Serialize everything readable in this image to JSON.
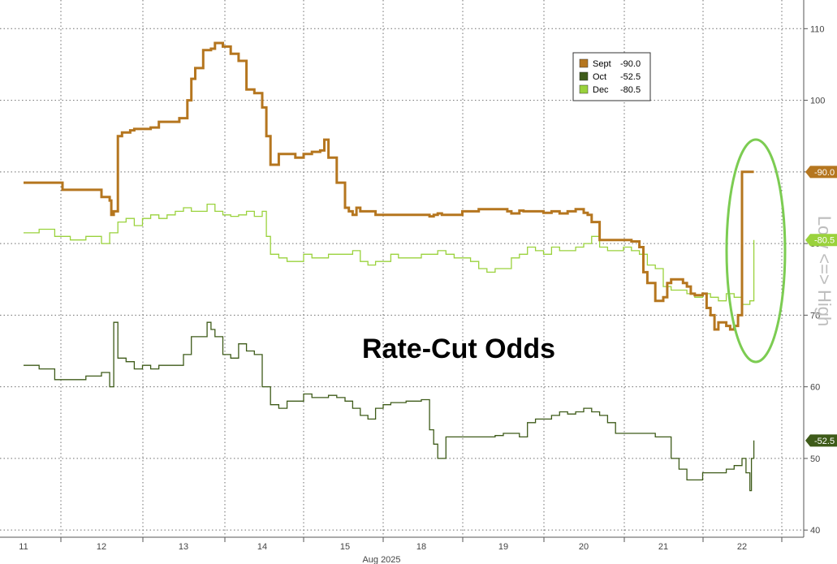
{
  "chart_data": {
    "type": "line",
    "title": "",
    "annotation": "Rate-Cut Odds",
    "side_label": "Low <=> High",
    "xlabel": "Aug 2025",
    "x_ticks": [
      "11",
      "12",
      "13",
      "14",
      "15",
      "18",
      "19",
      "20",
      "21",
      "22"
    ],
    "y_ticks": [
      40,
      50,
      60,
      70,
      80,
      90,
      100,
      110
    ],
    "ylim": [
      39,
      114
    ],
    "grid": true,
    "legend": "top-right",
    "colors": {
      "Sept": "#b5761f",
      "Oct": "#3e5b19",
      "Dec": "#9ad23c",
      "ellipse": "#7ccc52"
    },
    "series": [
      {
        "name": "Sept",
        "last": "-90.0",
        "legend_label": "Sept",
        "legend_value": "-90.0",
        "badge": "-90.0",
        "x": [
          0.0,
          0.3,
          0.5,
          0.75,
          1.0,
          1.1,
          1.12,
          1.15,
          1.2,
          1.25,
          1.3,
          1.35,
          1.4,
          1.5,
          1.6,
          1.7,
          1.85,
          1.95,
          2.05,
          2.1,
          2.15,
          2.25,
          2.35,
          2.4,
          2.5,
          2.6,
          2.7,
          2.8,
          2.9,
          3.0,
          3.05,
          3.1,
          3.2,
          3.3,
          3.4,
          3.5,
          3.6,
          3.7,
          3.75,
          3.8,
          3.9,
          4.0,
          4.05,
          4.1,
          4.15,
          4.2,
          4.3,
          4.4,
          4.6,
          4.8,
          5.0,
          5.1,
          5.15,
          5.2,
          5.25,
          5.3,
          5.5,
          5.7,
          5.9,
          6.0,
          6.05,
          6.1,
          6.15,
          6.2,
          6.25,
          6.3,
          6.4,
          6.5,
          6.6,
          6.7,
          6.8,
          6.9,
          7.0,
          7.05,
          7.1,
          7.2,
          7.3,
          7.4,
          7.5,
          7.6,
          7.7,
          7.75,
          7.8,
          7.9,
          8.0,
          8.05,
          8.1,
          8.15,
          8.2,
          8.25,
          8.3,
          8.35,
          8.4,
          8.5,
          8.55,
          8.6,
          8.65,
          8.7,
          8.8,
          8.85,
          8.9,
          8.95,
          9.0,
          9.05,
          9.08,
          9.1,
          9.12,
          9.15
        ],
        "y": [
          88.5,
          88.5,
          87.5,
          87.5,
          86.5,
          86.0,
          84.0,
          84.5,
          95.0,
          95.5,
          95.5,
          95.8,
          96.0,
          96.0,
          96.2,
          97.0,
          97.0,
          97.5,
          100.0,
          103.0,
          104.5,
          107.0,
          107.2,
          108.0,
          107.5,
          106.5,
          105.5,
          101.5,
          101.0,
          99.0,
          95.0,
          91.0,
          92.5,
          92.5,
          92.0,
          92.5,
          92.8,
          93.0,
          94.5,
          92.0,
          88.5,
          85.0,
          84.5,
          84.0,
          85.0,
          84.5,
          84.5,
          84.0,
          84.0,
          84.0,
          84.0,
          83.8,
          84.0,
          84.2,
          84.0,
          84.0,
          84.5,
          84.8,
          84.8,
          84.8,
          84.5,
          84.2,
          84.2,
          84.6,
          84.5,
          84.5,
          84.5,
          84.3,
          84.5,
          84.2,
          84.5,
          84.8,
          84.3,
          84.0,
          83.0,
          80.5,
          80.5,
          80.5,
          80.5,
          80.3,
          79.5,
          76.0,
          74.5,
          72.0,
          72.5,
          74.5,
          75.0,
          75.0,
          75.0,
          74.5,
          74.0,
          73.0,
          72.8,
          73.0,
          71.0,
          70.0,
          68.0,
          69.0,
          68.5,
          68.0,
          68.5,
          70.0,
          90.0,
          90.0,
          90.0,
          90.0,
          90.0,
          90.0
        ]
      },
      {
        "name": "Oct",
        "last": "-52.5",
        "legend_label": "Oct",
        "legend_value": "-52.5",
        "badge": "-52.5",
        "x": [
          0.0,
          0.2,
          0.4,
          0.6,
          0.8,
          1.0,
          1.1,
          1.15,
          1.2,
          1.3,
          1.4,
          1.5,
          1.6,
          1.7,
          1.85,
          2.0,
          2.1,
          2.2,
          2.3,
          2.35,
          2.4,
          2.5,
          2.6,
          2.7,
          2.8,
          2.9,
          3.0,
          3.1,
          3.2,
          3.3,
          3.4,
          3.5,
          3.6,
          3.7,
          3.8,
          3.9,
          4.0,
          4.1,
          4.2,
          4.3,
          4.4,
          4.5,
          4.6,
          4.8,
          5.0,
          5.1,
          5.15,
          5.2,
          5.3,
          5.5,
          5.7,
          5.9,
          6.0,
          6.1,
          6.2,
          6.3,
          6.4,
          6.5,
          6.6,
          6.7,
          6.8,
          6.9,
          7.0,
          7.1,
          7.2,
          7.3,
          7.4,
          7.5,
          7.6,
          7.7,
          7.8,
          7.9,
          8.0,
          8.1,
          8.2,
          8.3,
          8.4,
          8.5,
          8.6,
          8.7,
          8.8,
          8.9,
          9.0,
          9.05,
          9.1,
          9.12,
          9.15
        ],
        "y": [
          63.0,
          62.5,
          61.0,
          61.0,
          61.5,
          62.0,
          60.0,
          69.0,
          64.0,
          63.5,
          62.5,
          63.0,
          62.5,
          63.0,
          63.0,
          64.5,
          67.0,
          67.0,
          69.0,
          68.0,
          67.0,
          64.5,
          64.0,
          66.0,
          65.0,
          64.5,
          60.0,
          57.5,
          57.0,
          58.0,
          58.0,
          59.0,
          58.5,
          58.5,
          58.8,
          58.5,
          58.0,
          57.0,
          56.0,
          55.5,
          57.0,
          57.5,
          57.8,
          58.0,
          58.2,
          54.0,
          52.0,
          50.0,
          53.0,
          53.0,
          53.0,
          53.2,
          53.5,
          53.5,
          53.0,
          55.0,
          55.5,
          55.5,
          56.0,
          56.5,
          56.2,
          56.5,
          57.0,
          56.5,
          56.0,
          55.0,
          53.5,
          53.5,
          53.5,
          53.5,
          53.5,
          53.0,
          53.0,
          50.0,
          48.5,
          47.0,
          47.0,
          48.0,
          48.0,
          48.0,
          48.5,
          49.0,
          50.0,
          48.0,
          45.5,
          50.0,
          52.5
        ]
      },
      {
        "name": "Dec",
        "last": "-80.5",
        "legend_label": "Dec",
        "legend_value": "-80.5",
        "badge": "-80.5",
        "x": [
          0.0,
          0.2,
          0.4,
          0.6,
          0.8,
          1.0,
          1.1,
          1.2,
          1.3,
          1.4,
          1.5,
          1.6,
          1.7,
          1.8,
          1.9,
          2.0,
          2.1,
          2.2,
          2.3,
          2.4,
          2.5,
          2.6,
          2.7,
          2.8,
          2.9,
          3.0,
          3.05,
          3.1,
          3.2,
          3.3,
          3.4,
          3.5,
          3.6,
          3.7,
          3.8,
          3.9,
          4.0,
          4.1,
          4.2,
          4.3,
          4.4,
          4.5,
          4.6,
          4.7,
          4.8,
          4.9,
          5.0,
          5.1,
          5.2,
          5.3,
          5.4,
          5.5,
          5.6,
          5.7,
          5.8,
          5.9,
          6.0,
          6.1,
          6.2,
          6.3,
          6.4,
          6.5,
          6.6,
          6.7,
          6.8,
          6.9,
          7.0,
          7.1,
          7.2,
          7.3,
          7.4,
          7.5,
          7.6,
          7.7,
          7.8,
          7.9,
          8.0,
          8.1,
          8.2,
          8.3,
          8.4,
          8.5,
          8.6,
          8.7,
          8.8,
          8.9,
          9.0,
          9.1,
          9.15
        ],
        "y": [
          81.5,
          82.0,
          81.0,
          80.5,
          81.0,
          80.0,
          81.5,
          83.0,
          83.5,
          82.5,
          83.5,
          84.0,
          83.5,
          84.0,
          84.5,
          85.0,
          84.5,
          84.5,
          85.5,
          84.5,
          84.0,
          83.8,
          84.0,
          84.5,
          83.8,
          84.5,
          81.0,
          78.5,
          78.0,
          77.5,
          77.5,
          78.5,
          78.0,
          78.0,
          78.5,
          78.5,
          78.5,
          79.0,
          77.5,
          77.0,
          77.5,
          77.5,
          78.5,
          78.0,
          78.0,
          78.0,
          78.5,
          78.5,
          79.0,
          78.5,
          78.0,
          78.0,
          77.5,
          76.5,
          76.0,
          76.5,
          76.5,
          78.0,
          78.5,
          79.5,
          79.0,
          78.5,
          79.5,
          79.0,
          79.0,
          79.5,
          80.0,
          81.0,
          79.5,
          79.0,
          79.0,
          79.5,
          79.0,
          78.5,
          77.0,
          76.5,
          74.0,
          73.5,
          73.5,
          73.0,
          72.5,
          73.0,
          72.5,
          72.0,
          73.0,
          72.5,
          71.5,
          72.0,
          80.5
        ]
      }
    ]
  }
}
